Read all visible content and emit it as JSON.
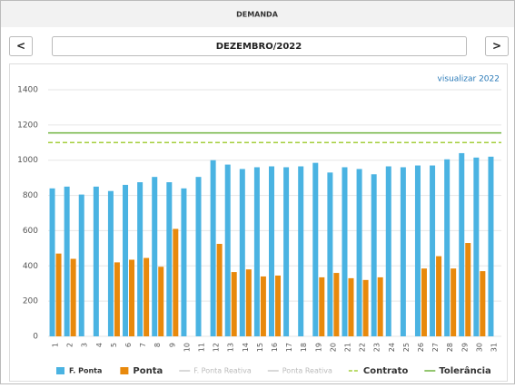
{
  "header": {
    "title": "DEMANDA"
  },
  "nav": {
    "prev": "<",
    "period": "DEZEMBRO/2022",
    "next": ">"
  },
  "link": "visualizar 2022",
  "chart_data": {
    "type": "bar",
    "categories": [
      "1",
      "2",
      "3",
      "4",
      "5",
      "6",
      "7",
      "8",
      "9",
      "10",
      "11",
      "12",
      "13",
      "14",
      "15",
      "16",
      "17",
      "18",
      "19",
      "20",
      "21",
      "22",
      "23",
      "24",
      "25",
      "26",
      "27",
      "28",
      "29",
      "30",
      "31"
    ],
    "series": [
      {
        "name": "F. Ponta",
        "color": "#4ab3e2",
        "kind": "bar",
        "values": [
          840,
          850,
          805,
          850,
          825,
          860,
          875,
          905,
          875,
          840,
          905,
          1000,
          975,
          950,
          960,
          965,
          960,
          965,
          985,
          930,
          960,
          950,
          920,
          965,
          960,
          970,
          970,
          1005,
          1040,
          1015,
          1020
        ]
      },
      {
        "name": "Ponta",
        "color": "#e8890c",
        "kind": "bar",
        "values": [
          470,
          440,
          null,
          null,
          420,
          435,
          445,
          395,
          610,
          null,
          null,
          525,
          365,
          380,
          340,
          345,
          null,
          null,
          335,
          360,
          330,
          320,
          335,
          null,
          null,
          385,
          455,
          385,
          530,
          370,
          null
        ]
      },
      {
        "name": "F. Ponta Reativa",
        "color": "#cccccc",
        "kind": "line"
      },
      {
        "name": "Ponta Reativa",
        "color": "#cccccc",
        "kind": "line"
      },
      {
        "name": "Contrato",
        "color": "#a4cf3c",
        "kind": "hline",
        "dashed": true,
        "value": 1100
      },
      {
        "name": "Tolerância",
        "color": "#6fb33f",
        "kind": "hline",
        "dashed": false,
        "value": 1155
      }
    ],
    "ylim": [
      0,
      1400
    ],
    "yticks": [
      0,
      200,
      400,
      600,
      800,
      1000,
      1200,
      1400
    ],
    "grid": true,
    "legend": "bottom"
  }
}
